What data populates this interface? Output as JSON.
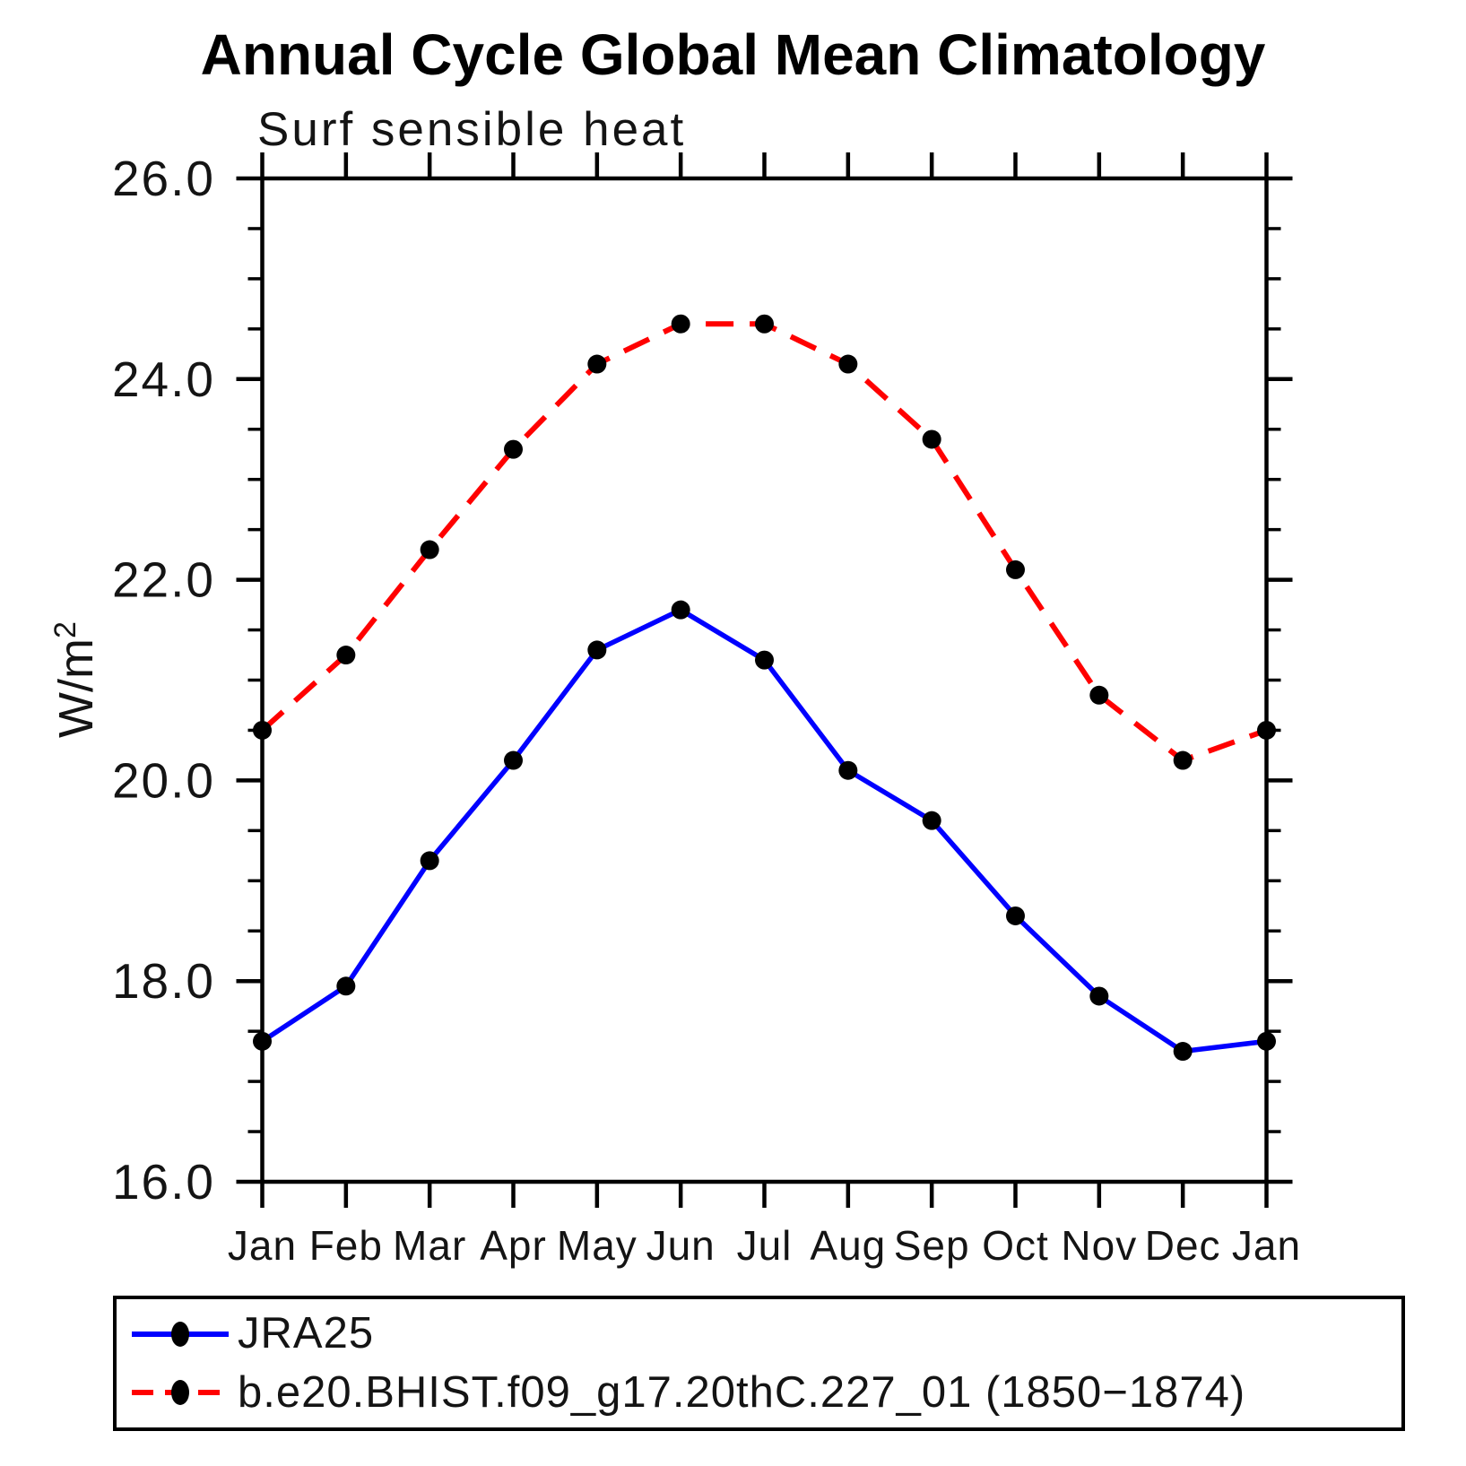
{
  "chart_data": {
    "type": "line",
    "title": "Annual Cycle Global Mean Climatology",
    "subtitle": "Surf sensible heat",
    "ylabel": {
      "base": "W/m",
      "exp": "2"
    },
    "categories": [
      "Jan",
      "Feb",
      "Mar",
      "Apr",
      "May",
      "Jun",
      "Jul",
      "Aug",
      "Sep",
      "Oct",
      "Nov",
      "Dec",
      "Jan"
    ],
    "series": [
      {
        "name": "JRA25",
        "color": "#0000ff",
        "line_style": "solid",
        "marker": "circle",
        "marker_color": "#000000",
        "values": [
          17.4,
          17.95,
          19.2,
          20.2,
          21.3,
          21.7,
          21.2,
          20.1,
          19.6,
          18.65,
          17.85,
          17.3,
          17.4
        ]
      },
      {
        "name": "b.e20.BHIST.f09_g17.20thC.227_01 (1850−1874)",
        "color": "#ff0000",
        "line_style": "dashed",
        "marker": "circle",
        "marker_color": "#000000",
        "values": [
          20.5,
          21.25,
          22.3,
          23.3,
          24.15,
          24.55,
          24.55,
          24.15,
          23.4,
          22.1,
          20.85,
          20.2,
          20.5
        ]
      }
    ],
    "ylim": [
      16.0,
      26.0
    ],
    "ytick_major": [
      16,
      18,
      20,
      22,
      24,
      26
    ],
    "ytick_labels": [
      "16.0",
      "18.0",
      "20.0",
      "22.0",
      "24.0",
      "26.0"
    ],
    "ytick_minor_step": 0.5,
    "grid": false,
    "legend_position": "bottom",
    "axis_color": "#000000"
  }
}
